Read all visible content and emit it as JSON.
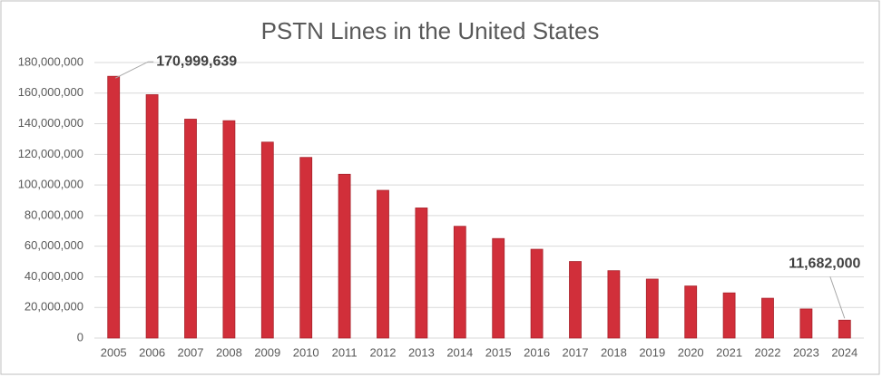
{
  "chart_data": {
    "type": "bar",
    "title": "PSTN Lines in the United States",
    "categories": [
      "2005",
      "2006",
      "2007",
      "2008",
      "2009",
      "2010",
      "2011",
      "2012",
      "2013",
      "2014",
      "2015",
      "2016",
      "2017",
      "2018",
      "2019",
      "2020",
      "2021",
      "2022",
      "2023",
      "2024"
    ],
    "values": [
      170999639,
      159000000,
      143000000,
      142000000,
      128000000,
      118000000,
      107000000,
      96500000,
      85000000,
      73000000,
      65000000,
      58000000,
      50000000,
      44000000,
      38500000,
      34000000,
      29500000,
      26000000,
      19000000,
      11682000
    ],
    "value_labels": [
      "170,999,639",
      null,
      null,
      null,
      null,
      null,
      null,
      null,
      null,
      null,
      null,
      null,
      null,
      null,
      null,
      null,
      null,
      null,
      null,
      "11,682,000"
    ],
    "color": "#d12f3a",
    "ylim": [
      0,
      180000000
    ],
    "yticks": [
      0,
      {
        "value": 20000000,
        "label": "20,000,000"
      },
      {
        "value": 40000000,
        "label": "40,000,000"
      },
      {
        "value": 60000000,
        "label": "60,000,000"
      },
      {
        "value": 80000000,
        "label": "80,000,000"
      },
      {
        "value": 100000000,
        "label": "100,000,000"
      },
      {
        "value": 120000000,
        "label": "120,000,000"
      },
      {
        "value": 140000000,
        "label": "140,000,000"
      },
      {
        "value": 160000000,
        "label": "160,000,000"
      },
      {
        "value": 180000000,
        "label": "180,000,000"
      }
    ],
    "grid": true
  }
}
